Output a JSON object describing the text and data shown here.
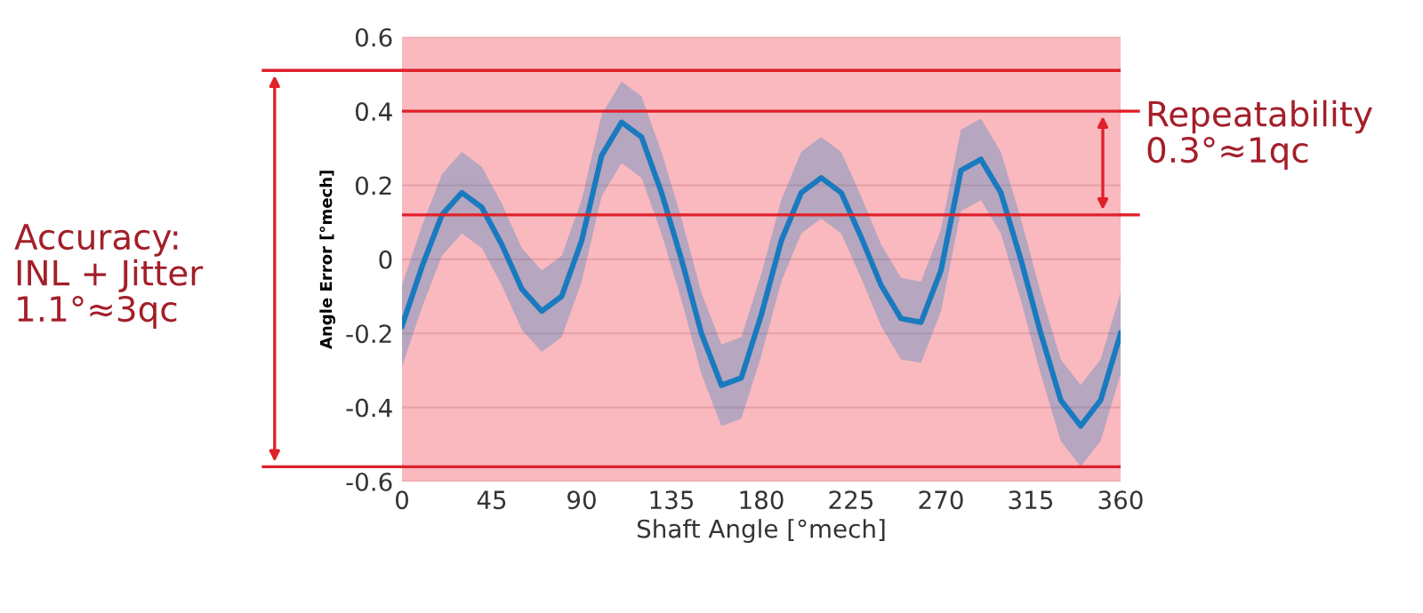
{
  "chart_data": {
    "type": "line",
    "xlabel": "Shaft Angle [°mech]",
    "ylabel": "Angle Error [°mech]",
    "x": [
      0,
      10,
      20,
      30,
      40,
      50,
      60,
      70,
      80,
      90,
      100,
      110,
      120,
      130,
      140,
      150,
      160,
      170,
      180,
      190,
      200,
      210,
      220,
      230,
      240,
      250,
      260,
      270,
      280,
      290,
      300,
      310,
      320,
      330,
      340,
      350,
      360
    ],
    "series": [
      {
        "color": "#1a7abf",
        "values": [
          -0.18,
          -0.02,
          0.12,
          0.18,
          0.14,
          0.04,
          -0.08,
          -0.14,
          -0.1,
          0.05,
          0.28,
          0.37,
          0.33,
          0.18,
          0.0,
          -0.2,
          -0.34,
          -0.32,
          -0.15,
          0.05,
          0.18,
          0.22,
          0.18,
          0.06,
          -0.07,
          -0.16,
          -0.17,
          -0.03,
          0.24,
          0.27,
          0.18,
          0.0,
          -0.2,
          -0.38,
          -0.45,
          -0.38,
          -0.2
        ],
        "lower": [
          -0.29,
          -0.13,
          0.01,
          0.07,
          0.03,
          -0.07,
          -0.19,
          -0.25,
          -0.21,
          -0.06,
          0.17,
          0.26,
          0.22,
          0.07,
          -0.11,
          -0.31,
          -0.45,
          -0.43,
          -0.26,
          -0.06,
          0.07,
          0.11,
          0.07,
          -0.05,
          -0.18,
          -0.27,
          -0.28,
          -0.14,
          0.13,
          0.16,
          0.07,
          -0.11,
          -0.31,
          -0.49,
          -0.56,
          -0.49,
          -0.31
        ],
        "upper": [
          -0.07,
          0.09,
          0.23,
          0.29,
          0.25,
          0.15,
          0.03,
          -0.03,
          0.01,
          0.16,
          0.39,
          0.48,
          0.44,
          0.29,
          0.11,
          -0.09,
          -0.23,
          -0.21,
          -0.04,
          0.16,
          0.29,
          0.33,
          0.29,
          0.17,
          0.04,
          -0.05,
          -0.06,
          0.08,
          0.35,
          0.38,
          0.29,
          0.11,
          -0.09,
          -0.27,
          -0.34,
          -0.27,
          -0.09
        ]
      }
    ],
    "xlim": [
      0,
      360
    ],
    "xticks": [
      0,
      45,
      90,
      135,
      180,
      225,
      270,
      315,
      360
    ],
    "ylim": [
      -0.6,
      0.6
    ],
    "yticks": [
      {
        "value": -0.6,
        "label": "-0.6"
      },
      {
        "value": -0.4,
        "label": "-0.4"
      },
      {
        "value": -0.2,
        "label": "-0.2"
      },
      0,
      0.2,
      0.4,
      0.6
    ],
    "grid": "y",
    "marker": "none",
    "line_style": "solid",
    "ref_lines": [
      {
        "axis": "y",
        "value": 0.51,
        "color": "#e0202a"
      },
      {
        "axis": "y",
        "value": -0.56,
        "color": "#e0202a"
      },
      {
        "axis": "y",
        "value": 0.4,
        "color": "#e0202a"
      },
      {
        "axis": "y",
        "value": 0.12,
        "color": "#e0202a"
      }
    ],
    "annotations": [
      "Accuracy:\nINL + Jitter\n1.1°≈3qc",
      "Repeatability\n0.3°≈1qc"
    ]
  }
}
